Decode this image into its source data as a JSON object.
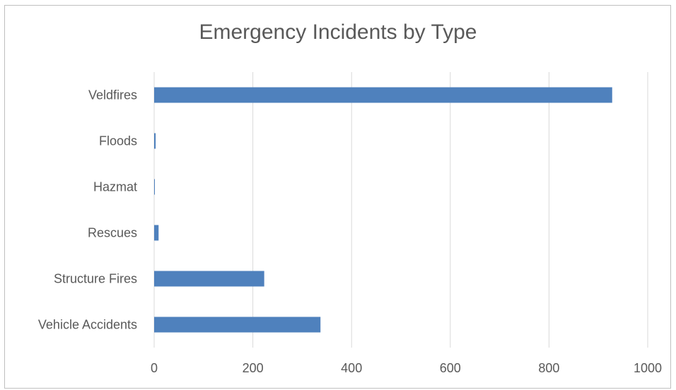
{
  "chart_data": {
    "type": "bar",
    "orientation": "horizontal",
    "title": "Emergency Incidents by Type",
    "categories": [
      "Veldfires",
      "Floods",
      "Hazmat",
      "Rescues",
      "Structure Fires",
      "Vehicle Accidents"
    ],
    "values": [
      928,
      3,
      1,
      9,
      223,
      337
    ],
    "xlim": [
      0,
      1000
    ],
    "xticks": [
      0,
      200,
      400,
      600,
      800,
      1000
    ],
    "grid": true,
    "bar_color": "#4f81bd",
    "grid_color": "#d9d9d9",
    "text_color": "#595959"
  }
}
